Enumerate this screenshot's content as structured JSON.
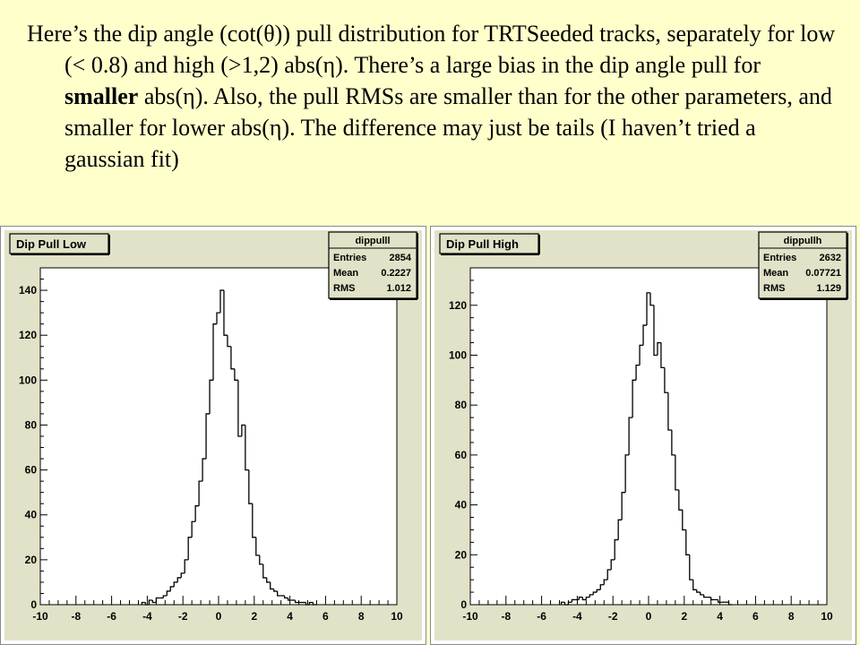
{
  "slide": {
    "line_1": "Here’s the dip angle (cot(θ)) pull distribution for TRTSeeded tracks, separately for low (< 0.8) and high (>1,2) abs(η). There’s a large bias in the dip angle pull for ",
    "bold": "smaller",
    "line_2": " abs(η). Also, the pull RMSs are smaller than for the other parameters, and smaller for lower abs(η). The difference may just be tails (I haven’t tried a gaussian fit)"
  },
  "colors": {
    "slide_background": "#ffffcc",
    "pad_background": "#e2e2c8",
    "histogram_line": "#000000"
  },
  "chart_data": [
    {
      "type": "bar",
      "title": "Dip Pull Low",
      "stats": {
        "name": "dippulll",
        "entries": "2854",
        "mean": "0.2227",
        "rms": "1.012"
      },
      "xlim": [
        -10,
        10
      ],
      "ylim": [
        0,
        150
      ],
      "x_ticks": [
        -10,
        -8,
        -6,
        -4,
        -2,
        0,
        2,
        4,
        6,
        8,
        10
      ],
      "y_ticks": [
        0,
        20,
        40,
        60,
        80,
        100,
        120,
        140
      ],
      "bin_width": 0.2,
      "x": [
        -4.2,
        -4.0,
        -3.8,
        -3.6,
        -3.4,
        -3.2,
        -3.0,
        -2.8,
        -2.6,
        -2.4,
        -2.2,
        -2.0,
        -1.8,
        -1.6,
        -1.4,
        -1.2,
        -1.0,
        -0.8,
        -0.6,
        -0.4,
        -0.2,
        0.0,
        0.2,
        0.4,
        0.6,
        0.8,
        1.0,
        1.2,
        1.4,
        1.6,
        1.8,
        2.0,
        2.2,
        2.4,
        2.6,
        2.8,
        3.0,
        3.2,
        3.4,
        3.6,
        3.8,
        4.0,
        4.2,
        4.4,
        4.6,
        4.8,
        5.0,
        5.2,
        5.4
      ],
      "values": [
        1,
        0,
        2,
        1,
        3,
        3,
        4,
        6,
        8,
        10,
        12,
        14,
        20,
        30,
        37,
        44,
        55,
        65,
        85,
        100,
        125,
        130,
        140,
        120,
        115,
        105,
        100,
        75,
        80,
        60,
        45,
        30,
        22,
        18,
        12,
        10,
        7,
        6,
        4,
        4,
        3,
        2,
        2,
        1,
        1,
        1,
        0,
        1,
        0
      ]
    },
    {
      "type": "bar",
      "title": "Dip Pull High",
      "stats": {
        "name": "dippullh",
        "entries": "2632",
        "mean": "0.07721",
        "rms": "1.129"
      },
      "xlim": [
        -10,
        10
      ],
      "ylim": [
        0,
        135
      ],
      "x_ticks": [
        -10,
        -8,
        -6,
        -4,
        -2,
        0,
        2,
        4,
        6,
        8,
        10
      ],
      "y_ticks": [
        0,
        20,
        40,
        60,
        80,
        100,
        120
      ],
      "bin_width": 0.2,
      "x": [
        -4.8,
        -4.6,
        -4.4,
        -4.2,
        -4.0,
        -3.8,
        -3.6,
        -3.4,
        -3.2,
        -3.0,
        -2.8,
        -2.6,
        -2.4,
        -2.2,
        -2.0,
        -1.8,
        -1.6,
        -1.4,
        -1.2,
        -1.0,
        -0.8,
        -0.6,
        -0.4,
        -0.2,
        0.0,
        0.2,
        0.4,
        0.6,
        0.8,
        1.0,
        1.2,
        1.4,
        1.6,
        1.8,
        2.0,
        2.2,
        2.4,
        2.6,
        2.8,
        3.0,
        3.2,
        3.4,
        3.6,
        3.8,
        4.0,
        4.2,
        4.4,
        4.6
      ],
      "values": [
        1,
        0,
        1,
        2,
        2,
        3,
        2,
        3,
        4,
        5,
        6,
        8,
        10,
        14,
        18,
        26,
        34,
        45,
        60,
        75,
        90,
        96,
        104,
        112,
        125,
        120,
        100,
        105,
        95,
        85,
        70,
        60,
        46,
        38,
        30,
        20,
        10,
        6,
        5,
        4,
        3,
        3,
        2,
        2,
        1,
        1,
        1,
        0
      ]
    }
  ]
}
